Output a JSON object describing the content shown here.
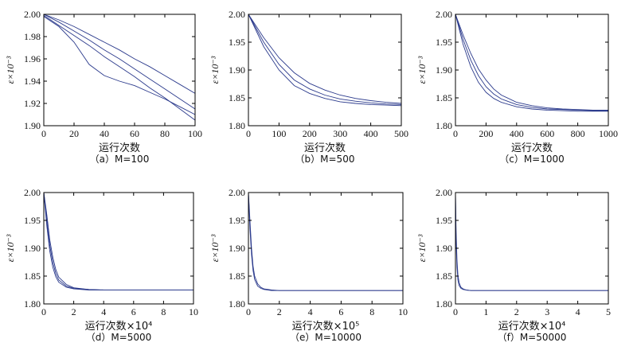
{
  "line_color": "#2b3a8c",
  "chart_data": [
    {
      "type": "line",
      "caption": "（a）M=100",
      "xlabel": "运行次数",
      "ylabel": "ε×10⁻³",
      "xlim": [
        0,
        100
      ],
      "ylim": [
        1.9,
        2.0
      ],
      "xticks": [
        "0",
        "20",
        "40",
        "60",
        "80",
        "100"
      ],
      "yticks": [
        "1.90",
        "1.92",
        "1.94",
        "1.96",
        "1.98",
        "2.00"
      ],
      "xtick_values": [
        0,
        20,
        40,
        60,
        80,
        100
      ],
      "ytick_values": [
        1.9,
        1.92,
        1.94,
        1.96,
        1.98,
        2.0
      ],
      "series": [
        {
          "x": [
            0,
            10,
            20,
            30,
            40,
            50,
            60,
            70,
            80,
            90,
            100
          ],
          "values": [
            2.0,
            1.993,
            1.985,
            1.977,
            1.968,
            1.96,
            1.951,
            1.942,
            1.933,
            1.924,
            1.915
          ]
        },
        {
          "x": [
            0,
            10,
            20,
            30,
            40,
            50,
            60,
            70,
            80,
            90,
            100
          ],
          "values": [
            2.0,
            1.995,
            1.989,
            1.982,
            1.975,
            1.968,
            1.96,
            1.953,
            1.945,
            1.937,
            1.929
          ]
        },
        {
          "x": [
            0,
            10,
            20,
            30,
            40,
            50,
            60,
            70,
            80,
            90,
            100
          ],
          "values": [
            1.999,
            1.99,
            1.981,
            1.972,
            1.962,
            1.953,
            1.944,
            1.934,
            1.925,
            1.915,
            1.905
          ]
        },
        {
          "x": [
            0,
            10,
            20,
            30,
            40,
            50,
            60,
            70,
            80,
            90,
            100
          ],
          "values": [
            1.998,
            1.989,
            1.975,
            1.955,
            1.945,
            1.94,
            1.936,
            1.93,
            1.924,
            1.917,
            1.91
          ]
        }
      ]
    },
    {
      "type": "line",
      "caption": "（b）M=500",
      "xlabel": "运行次数",
      "ylabel": "ε×10⁻³",
      "xlim": [
        0,
        500
      ],
      "ylim": [
        1.8,
        2.0
      ],
      "xticks": [
        "0",
        "100",
        "200",
        "300",
        "400",
        "500"
      ],
      "yticks": [
        "1.80",
        "1.85",
        "1.90",
        "1.95",
        "2.00"
      ],
      "xtick_values": [
        0,
        100,
        200,
        300,
        400,
        500
      ],
      "ytick_values": [
        1.8,
        1.85,
        1.9,
        1.95,
        2.0
      ],
      "series": [
        {
          "x": [
            0,
            50,
            100,
            150,
            200,
            250,
            300,
            350,
            400,
            450,
            500
          ],
          "values": [
            2.0,
            1.95,
            1.91,
            1.882,
            1.866,
            1.855,
            1.848,
            1.844,
            1.841,
            1.839,
            1.838
          ]
        },
        {
          "x": [
            0,
            50,
            100,
            150,
            200,
            250,
            300,
            350,
            400,
            450,
            500
          ],
          "values": [
            2.0,
            1.958,
            1.922,
            1.895,
            1.876,
            1.864,
            1.855,
            1.849,
            1.845,
            1.842,
            1.84
          ]
        },
        {
          "x": [
            0,
            50,
            100,
            150,
            200,
            250,
            300,
            350,
            400,
            450,
            500
          ],
          "values": [
            2.0,
            1.942,
            1.9,
            1.872,
            1.858,
            1.849,
            1.843,
            1.84,
            1.838,
            1.837,
            1.836
          ]
        }
      ]
    },
    {
      "type": "line",
      "caption": "（c）M=1000",
      "xlabel": "运行次数",
      "ylabel": "ε×10⁻³",
      "xlim": [
        0,
        1000
      ],
      "ylim": [
        1.8,
        2.0
      ],
      "xticks": [
        "0",
        "200",
        "400",
        "600",
        "800",
        "1000"
      ],
      "yticks": [
        "1.80",
        "1.85",
        "1.90",
        "1.95",
        "2.00"
      ],
      "xtick_values": [
        0,
        200,
        400,
        600,
        800,
        1000
      ],
      "ytick_values": [
        1.8,
        1.85,
        1.9,
        1.95,
        2.0
      ],
      "series": [
        {
          "x": [
            0,
            50,
            100,
            150,
            200,
            250,
            300,
            400,
            500,
            600,
            700,
            800,
            900,
            1000
          ],
          "values": [
            2.0,
            1.955,
            1.918,
            1.89,
            1.87,
            1.857,
            1.848,
            1.838,
            1.833,
            1.83,
            1.829,
            1.828,
            1.827,
            1.827
          ]
        },
        {
          "x": [
            0,
            50,
            100,
            150,
            200,
            250,
            300,
            400,
            500,
            600,
            700,
            800,
            900,
            1000
          ],
          "values": [
            2.0,
            1.963,
            1.93,
            1.902,
            1.882,
            1.866,
            1.855,
            1.842,
            1.836,
            1.832,
            1.83,
            1.829,
            1.828,
            1.828
          ]
        },
        {
          "x": [
            0,
            50,
            100,
            150,
            200,
            250,
            300,
            400,
            500,
            600,
            700,
            800,
            900,
            1000
          ],
          "values": [
            2.0,
            1.946,
            1.906,
            1.878,
            1.86,
            1.849,
            1.842,
            1.834,
            1.83,
            1.828,
            1.827,
            1.826,
            1.826,
            1.826
          ]
        }
      ]
    },
    {
      "type": "line",
      "caption": "（d）M=5000",
      "xlabel": "运行次数×10⁴",
      "ylabel": "ε×10⁻³",
      "xlim": [
        0,
        10
      ],
      "ylim": [
        1.8,
        2.0
      ],
      "xticks": [
        "0",
        "2",
        "4",
        "6",
        "8",
        "10"
      ],
      "yticks": [
        "1.80",
        "1.85",
        "1.90",
        "1.95",
        "2.00"
      ],
      "xtick_values": [
        0,
        2,
        4,
        6,
        8,
        10
      ],
      "ytick_values": [
        1.8,
        1.85,
        1.9,
        1.95,
        2.0
      ],
      "series": [
        {
          "x": [
            0,
            0.2,
            0.4,
            0.6,
            0.8,
            1.0,
            1.5,
            2,
            3,
            4,
            6,
            8,
            10
          ],
          "values": [
            2.0,
            1.95,
            1.905,
            1.875,
            1.855,
            1.843,
            1.832,
            1.828,
            1.826,
            1.825,
            1.825,
            1.825,
            1.825
          ]
        },
        {
          "x": [
            0,
            0.2,
            0.4,
            0.6,
            0.8,
            1.0,
            1.5,
            2,
            3,
            4,
            6,
            8,
            10
          ],
          "values": [
            2.0,
            1.94,
            1.895,
            1.866,
            1.849,
            1.839,
            1.83,
            1.827,
            1.825,
            1.825,
            1.825,
            1.825,
            1.825
          ]
        },
        {
          "x": [
            0,
            0.2,
            0.4,
            0.6,
            0.8,
            1.0,
            1.5,
            2,
            3,
            4,
            6,
            8,
            10
          ],
          "values": [
            2.0,
            1.96,
            1.915,
            1.884,
            1.862,
            1.848,
            1.835,
            1.829,
            1.826,
            1.825,
            1.825,
            1.825,
            1.825
          ]
        }
      ]
    },
    {
      "type": "line",
      "caption": "（e）M=10000",
      "xlabel": "运行次数×10⁵",
      "ylabel": "ε×10⁻³",
      "xlim": [
        0,
        10
      ],
      "ylim": [
        1.8,
        2.0
      ],
      "xticks": [
        "0",
        "2",
        "4",
        "6",
        "8",
        "10"
      ],
      "yticks": [
        "1.80",
        "1.85",
        "1.90",
        "1.95",
        "2.00"
      ],
      "xtick_values": [
        0,
        2,
        4,
        6,
        8,
        10
      ],
      "ytick_values": [
        1.8,
        1.85,
        1.9,
        1.95,
        2.0
      ],
      "series": [
        {
          "x": [
            0,
            0.1,
            0.2,
            0.3,
            0.4,
            0.6,
            0.8,
            1.0,
            1.5,
            2,
            3,
            5,
            10
          ],
          "values": [
            2.0,
            1.95,
            1.9,
            1.868,
            1.85,
            1.836,
            1.83,
            1.827,
            1.825,
            1.824,
            1.824,
            1.824,
            1.824
          ]
        },
        {
          "x": [
            0,
            0.1,
            0.2,
            0.3,
            0.4,
            0.6,
            0.8,
            1.0,
            1.5,
            2,
            3,
            5,
            10
          ],
          "values": [
            2.0,
            1.935,
            1.888,
            1.86,
            1.844,
            1.832,
            1.828,
            1.826,
            1.824,
            1.824,
            1.824,
            1.824,
            1.824
          ]
        }
      ]
    },
    {
      "type": "line",
      "caption": "（f）M=50000",
      "xlabel": "运行次数×10⁴",
      "ylabel": "ε×10⁻³",
      "xlim": [
        0,
        5
      ],
      "ylim": [
        1.8,
        2.0
      ],
      "xticks": [
        "0",
        "1",
        "2",
        "3",
        "4",
        "5"
      ],
      "yticks": [
        "1.80",
        "1.85",
        "1.90",
        "1.95",
        "2.00"
      ],
      "xtick_values": [
        0,
        1,
        2,
        3,
        4,
        5
      ],
      "ytick_values": [
        1.8,
        1.85,
        1.9,
        1.95,
        2.0
      ],
      "series": [
        {
          "x": [
            0,
            0.02,
            0.05,
            0.08,
            0.12,
            0.18,
            0.25,
            0.35,
            0.5,
            1,
            2,
            3,
            4,
            5
          ],
          "values": [
            2.0,
            1.93,
            1.88,
            1.852,
            1.838,
            1.83,
            1.827,
            1.825,
            1.824,
            1.824,
            1.824,
            1.824,
            1.824,
            1.824
          ]
        },
        {
          "x": [
            0,
            0.02,
            0.05,
            0.08,
            0.12,
            0.18,
            0.25,
            0.35,
            0.5,
            1,
            2,
            3,
            4,
            5
          ],
          "values": [
            2.0,
            1.915,
            1.866,
            1.843,
            1.833,
            1.828,
            1.826,
            1.825,
            1.824,
            1.824,
            1.824,
            1.824,
            1.824,
            1.824
          ]
        }
      ]
    }
  ]
}
